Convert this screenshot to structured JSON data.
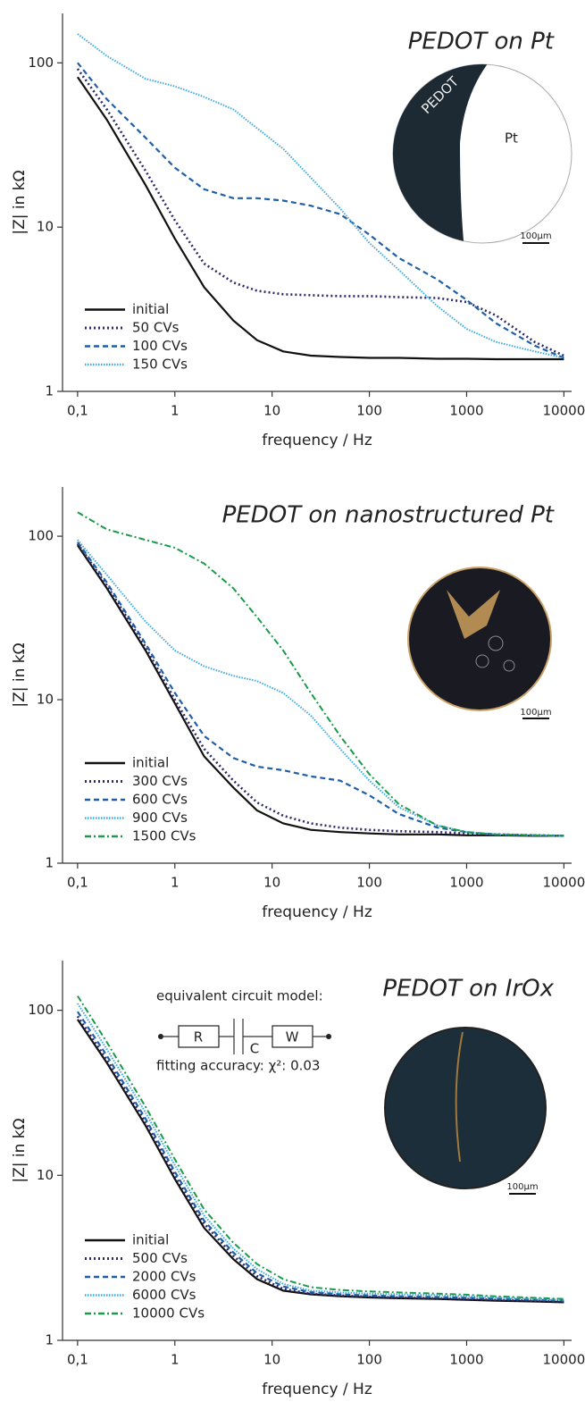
{
  "chart_data": [
    {
      "type": "line",
      "title": "PEDOT on Pt",
      "x_label": "frequency / Hz",
      "y_label": "|Z| in kΩ",
      "xscale": "log",
      "yscale": "log",
      "legend": "lower left",
      "inset_labels": [
        "PEDOT",
        "Pt",
        "100µm"
      ],
      "xlim": [
        0.07,
        12000
      ],
      "ylim": [
        1,
        200
      ],
      "xticks": [
        {
          "value": 0.1,
          "label": "0,1"
        },
        1,
        10,
        100,
        1000,
        10000
      ],
      "yticks": [
        1,
        10,
        100
      ],
      "x": [
        0.1,
        0.2,
        0.5,
        1,
        2,
        4,
        7,
        13,
        25,
        50,
        100,
        200,
        500,
        1000,
        2000,
        5000,
        10000
      ],
      "series": [
        {
          "name": "initial",
          "color": "#111111",
          "dash": "solid",
          "values": [
            82,
            45,
            18,
            8.5,
            4.3,
            2.7,
            2.05,
            1.75,
            1.65,
            1.62,
            1.6,
            1.6,
            1.58,
            1.58,
            1.57,
            1.57,
            1.57
          ]
        },
        {
          "name": "50 CVs",
          "color": "#2e2a6b",
          "dash": "dotted",
          "values": [
            92,
            52,
            22,
            11,
            6,
            4.6,
            4.1,
            3.9,
            3.85,
            3.8,
            3.8,
            3.75,
            3.7,
            3.5,
            2.9,
            2.0,
            1.65
          ]
        },
        {
          "name": "100 CVs",
          "color": "#1f5fa8",
          "dash": "dashed",
          "values": [
            100,
            60,
            35,
            23,
            17,
            15,
            15,
            14.5,
            13.5,
            12,
            9,
            6.5,
            4.8,
            3.6,
            2.6,
            1.9,
            1.6
          ]
        },
        {
          "name": "150 CVs",
          "color": "#3fa9e0",
          "dash": "fine-dotted",
          "values": [
            150,
            110,
            80,
            72,
            62,
            52,
            40,
            30,
            20,
            13,
            8,
            5.5,
            3.3,
            2.4,
            2.0,
            1.75,
            1.6
          ]
        }
      ]
    },
    {
      "type": "line",
      "title": "PEDOT on nanostructured Pt",
      "x_label": "frequency / Hz",
      "y_label": "|Z| in kΩ",
      "xscale": "log",
      "yscale": "log",
      "legend": "lower left",
      "inset_labels": [
        "100µm"
      ],
      "xlim": [
        0.07,
        12000
      ],
      "ylim": [
        1,
        200
      ],
      "xticks": [
        {
          "value": 0.1,
          "label": "0,1"
        },
        1,
        10,
        100,
        1000,
        10000
      ],
      "yticks": [
        1,
        10,
        100
      ],
      "x": [
        0.1,
        0.2,
        0.5,
        1,
        2,
        4,
        7,
        13,
        25,
        50,
        100,
        200,
        500,
        1000,
        2000,
        5000,
        10000
      ],
      "series": [
        {
          "name": "initial",
          "color": "#111111",
          "dash": "solid",
          "values": [
            88,
            48,
            20,
            9.5,
            4.5,
            2.9,
            2.1,
            1.75,
            1.6,
            1.55,
            1.52,
            1.5,
            1.5,
            1.48,
            1.48,
            1.47,
            1.47
          ]
        },
        {
          "name": "300 CVs",
          "color": "#2e2a6b",
          "dash": "dotted",
          "values": [
            90,
            50,
            21,
            10,
            5,
            3.2,
            2.35,
            1.95,
            1.75,
            1.65,
            1.6,
            1.57,
            1.55,
            1.52,
            1.5,
            1.48,
            1.47
          ]
        },
        {
          "name": "600 CVs",
          "color": "#1f5fa8",
          "dash": "dashed",
          "values": [
            92,
            52,
            22,
            11,
            6,
            4.4,
            3.9,
            3.7,
            3.4,
            3.2,
            2.6,
            2.0,
            1.65,
            1.55,
            1.5,
            1.48,
            1.47
          ]
        },
        {
          "name": "900 CVs",
          "color": "#3fa9e0",
          "dash": "fine-dotted",
          "values": [
            95,
            58,
            30,
            20,
            16,
            14,
            13,
            11,
            8,
            5,
            3.2,
            2.2,
            1.7,
            1.55,
            1.5,
            1.48,
            1.47
          ]
        },
        {
          "name": "1500 CVs",
          "color": "#1a9a4a",
          "dash": "dash-dot",
          "values": [
            140,
            110,
            95,
            85,
            68,
            48,
            32,
            20,
            11,
            6,
            3.5,
            2.3,
            1.7,
            1.55,
            1.5,
            1.48,
            1.47
          ]
        }
      ]
    },
    {
      "type": "line",
      "title": "PEDOT on IrOx",
      "x_label": "frequency / Hz",
      "y_label": "|Z| in kΩ",
      "xscale": "log",
      "yscale": "log",
      "legend": "lower left",
      "inset_labels": [
        "100µm"
      ],
      "circuit_title": "equivalent circuit model:",
      "circuit_elements": [
        "R",
        "C",
        "W"
      ],
      "fitting_accuracy": "fitting accuracy: χ²: 0.03",
      "xlim": [
        0.07,
        12000
      ],
      "ylim": [
        1,
        200
      ],
      "xticks": [
        {
          "value": 0.1,
          "label": "0,1"
        },
        1,
        10,
        100,
        1000,
        10000
      ],
      "yticks": [
        1,
        10,
        100
      ],
      "x": [
        0.1,
        0.2,
        0.5,
        1,
        2,
        4,
        7,
        13,
        25,
        50,
        100,
        200,
        500,
        1000,
        2000,
        5000,
        10000
      ],
      "series": [
        {
          "name": "initial",
          "color": "#111111",
          "dash": "solid",
          "values": [
            88,
            48,
            20,
            9.5,
            4.8,
            3.1,
            2.35,
            2.0,
            1.9,
            1.85,
            1.82,
            1.8,
            1.78,
            1.76,
            1.74,
            1.72,
            1.7
          ]
        },
        {
          "name": "500 CVs",
          "color": "#2e2a6b",
          "dash": "dotted",
          "values": [
            92,
            50,
            21,
            10,
            5.1,
            3.25,
            2.45,
            2.05,
            1.92,
            1.87,
            1.84,
            1.82,
            1.8,
            1.78,
            1.76,
            1.74,
            1.72
          ]
        },
        {
          "name": "2000 CVs",
          "color": "#1f5fa8",
          "dash": "dashed",
          "values": [
            98,
            53,
            22,
            10.5,
            5.3,
            3.4,
            2.55,
            2.12,
            1.96,
            1.9,
            1.87,
            1.85,
            1.83,
            1.81,
            1.79,
            1.76,
            1.74
          ]
        },
        {
          "name": "6000 CVs",
          "color": "#3fa9e0",
          "dash": "fine-dotted",
          "values": [
            110,
            58,
            24,
            11.5,
            5.7,
            3.6,
            2.7,
            2.2,
            2.0,
            1.95,
            1.92,
            1.9,
            1.88,
            1.85,
            1.82,
            1.79,
            1.76
          ]
        },
        {
          "name": "10000 CVs",
          "color": "#1a9a4a",
          "dash": "dash-dot",
          "values": [
            122,
            64,
            26,
            12.5,
            6.2,
            3.9,
            2.9,
            2.35,
            2.1,
            2.02,
            1.98,
            1.95,
            1.92,
            1.89,
            1.85,
            1.81,
            1.78
          ]
        }
      ]
    }
  ]
}
